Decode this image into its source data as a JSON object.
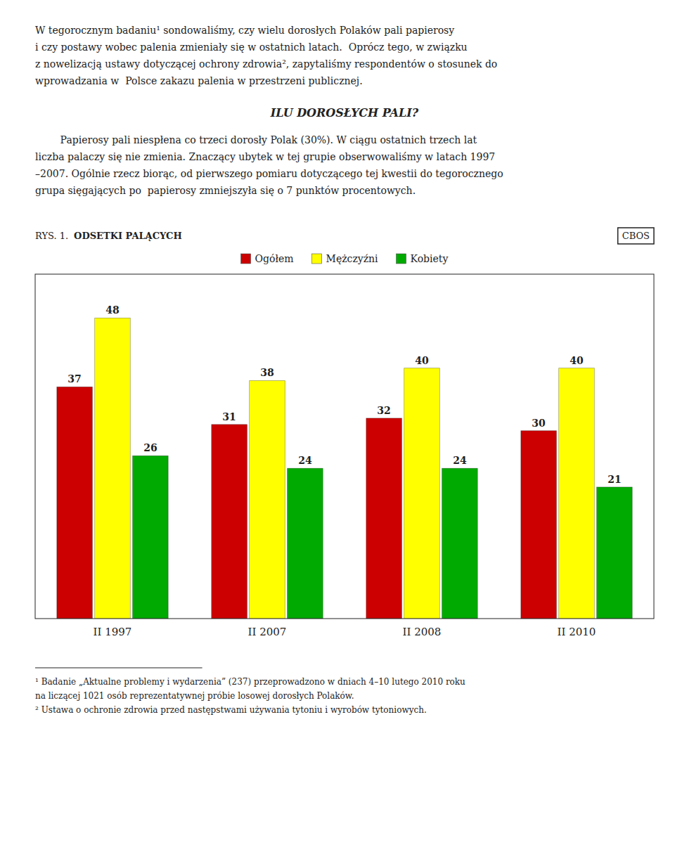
{
  "heading": "ILU DOROSŁYCH PALI?",
  "paragraphs": [
    [
      "W tegorocznym badaniu¹ sondowaliśmy, czy wielu dorosłych Polaków pali papierosy",
      "i czy postawy wobec palenia zmieniały się w ostatnich latach.  Oprócz tego, w związku",
      "z nowelizacją ustawy dotyczącej ochrony zdrowia², zapytaliśmy respondentów o stosunek do",
      "wprowadzania w  Polsce zakazu palenia w przestrzeni publicznej."
    ],
    [
      "        Papierosy pali niespłena co trzeci dorosły Polak (30%). W ciągu ostatnich trzech lat",
      "liczba palaczy się nie zmienia. Znaczący ubytek w tej grupie obserwowaliśmy w latach 1997",
      "–2007. Ogólnie rzecz biorąc, od pierwszego pomiaru dotyczącego tej kwestii do tegorocznego",
      "grupa sięgających po  papierosy zmniejszyła się o 7 punktów procentowych."
    ]
  ],
  "footnotes": [
    "¹ Badanie „Aktualne problemy i wydarzenia” (237) przeprowadzono w dniach 4–10 lutego 2010 roku",
    "na liczącej 1021 osób reprezentatywnej próbie losowej dorosłych Polaków.",
    "² Ustawa o ochronie zdrowia przed następstwami używania tytoniu i wyrobów tytoniowych."
  ],
  "chart_data": {
    "type": "bar",
    "title": "ODSETKI PALĄCYCH",
    "annotations": [
      "RYS. 1.",
      "CBOS"
    ],
    "categories": [
      "II 1997",
      "II 2007",
      "II 2008",
      "II 2010"
    ],
    "series": [
      {
        "name": "Ogółem",
        "color": "#cc0000",
        "values": [
          37,
          31,
          32,
          30
        ]
      },
      {
        "name": "Mężczyźni",
        "color": "#ffff00",
        "values": [
          48,
          38,
          40,
          40
        ]
      },
      {
        "name": "Kobiety",
        "color": "#00aa00",
        "values": [
          26,
          24,
          24,
          21
        ]
      }
    ],
    "ylim": [
      0,
      55
    ],
    "data_labels": true,
    "tick_labels": "x",
    "grid": false,
    "legend": "top"
  }
}
